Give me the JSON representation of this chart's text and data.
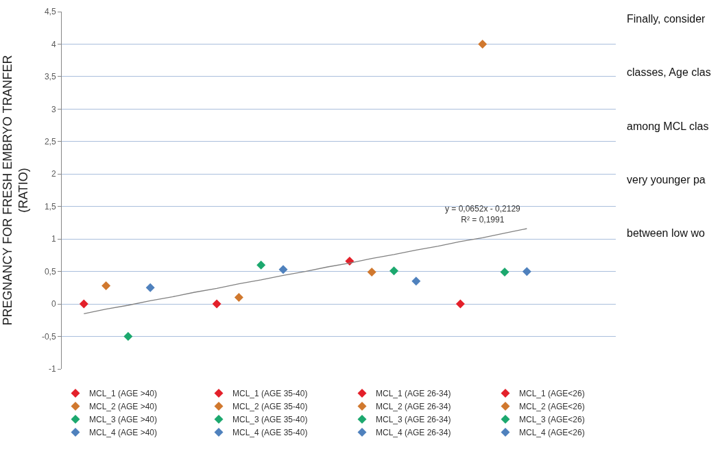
{
  "chart_data": {
    "type": "scatter",
    "ylabel": "PREGNANCY FOR FRESH EMBRYO TRANFER\n(RATIO)",
    "categories": [
      null,
      null,
      null,
      null,
      null,
      null,
      null,
      null,
      null,
      null,
      null,
      null,
      null,
      null,
      null,
      null,
      null,
      null,
      null,
      null,
      null
    ],
    "ylim": [
      -1,
      4.5
    ],
    "yticks": [
      -1,
      {
        "value": -0.5,
        "label": "-0,5"
      },
      0,
      {
        "value": 0.5,
        "label": "0,5"
      },
      1,
      {
        "value": 1.5,
        "label": "1,5"
      },
      2,
      {
        "value": 2.5,
        "label": "2,5"
      },
      3,
      {
        "value": 3.5,
        "label": "3,5"
      },
      4,
      {
        "value": 4.5,
        "label": "4,5"
      }
    ],
    "tick_labels": "y",
    "grid": "y",
    "legend": "bottom",
    "marker": "diamond",
    "series": [
      {
        "name": "MCL_1 (AGE >40)",
        "color": "#e3202a",
        "values": [
          0,
          null,
          null,
          null,
          null,
          null,
          null,
          null,
          null,
          null,
          null,
          null,
          null,
          null,
          null,
          null,
          null,
          null,
          null,
          null,
          null
        ]
      },
      {
        "name": "MCL_2 (AGE >40)",
        "color": "#d0782e",
        "values": [
          null,
          0.28,
          null,
          null,
          null,
          null,
          null,
          null,
          null,
          null,
          null,
          null,
          null,
          null,
          null,
          null,
          null,
          null,
          null,
          null,
          null
        ]
      },
      {
        "name": "MCL_3 (AGE >40)",
        "color": "#1ca86e",
        "values": [
          null,
          null,
          -0.5,
          null,
          null,
          null,
          null,
          null,
          null,
          null,
          null,
          null,
          null,
          null,
          null,
          null,
          null,
          null,
          null,
          null,
          null
        ]
      },
      {
        "name": "MCL_4 (AGE >40)",
        "color": "#4f81bd",
        "values": [
          null,
          null,
          null,
          0.25,
          null,
          null,
          null,
          null,
          null,
          null,
          null,
          null,
          null,
          null,
          null,
          null,
          null,
          null,
          null,
          null,
          null
        ]
      },
      {
        "name": "MCL_1 (AGE 35-40)",
        "color": "#e3202a",
        "values": [
          null,
          null,
          null,
          null,
          null,
          null,
          0,
          null,
          null,
          null,
          null,
          null,
          null,
          null,
          null,
          null,
          null,
          null,
          null,
          null,
          null
        ]
      },
      {
        "name": "MCL_2 (AGE 35-40)",
        "color": "#d0782e",
        "values": [
          null,
          null,
          null,
          null,
          null,
          null,
          null,
          0.1,
          null,
          null,
          null,
          null,
          null,
          null,
          null,
          null,
          null,
          null,
          null,
          null,
          null
        ]
      },
      {
        "name": "MCL_3 (AGE 35-40)",
        "color": "#1ca86e",
        "values": [
          null,
          null,
          null,
          null,
          null,
          null,
          null,
          null,
          0.6,
          null,
          null,
          null,
          null,
          null,
          null,
          null,
          null,
          null,
          null,
          null,
          null
        ]
      },
      {
        "name": "MCL_4 (AGE 35-40)",
        "color": "#4f81bd",
        "values": [
          null,
          null,
          null,
          null,
          null,
          null,
          null,
          null,
          null,
          0.53,
          null,
          null,
          null,
          null,
          null,
          null,
          null,
          null,
          null,
          null,
          null
        ]
      },
      {
        "name": "MCL_1 (AGE 26-34)",
        "color": "#e3202a",
        "values": [
          null,
          null,
          null,
          null,
          null,
          null,
          null,
          null,
          null,
          null,
          null,
          null,
          0.66,
          null,
          null,
          null,
          null,
          null,
          null,
          null,
          null
        ]
      },
      {
        "name": "MCL_2 (AGE 26-34)",
        "color": "#d0782e",
        "values": [
          null,
          null,
          null,
          null,
          null,
          null,
          null,
          null,
          null,
          null,
          null,
          null,
          null,
          0.49,
          null,
          null,
          null,
          null,
          null,
          null,
          null
        ]
      },
      {
        "name": "MCL_3 (AGE 26-34)",
        "color": "#1ca86e",
        "values": [
          null,
          null,
          null,
          null,
          null,
          null,
          null,
          null,
          null,
          null,
          null,
          null,
          null,
          null,
          0.51,
          null,
          null,
          null,
          null,
          null,
          null
        ]
      },
      {
        "name": "MCL_4 (AGE 26-34)",
        "color": "#4f81bd",
        "values": [
          null,
          null,
          null,
          null,
          null,
          null,
          null,
          null,
          null,
          null,
          null,
          null,
          null,
          null,
          null,
          0.35,
          null,
          null,
          null,
          null,
          null
        ]
      },
      {
        "name": "MCL_1 (AGE<26)",
        "color": "#e3202a",
        "values": [
          null,
          null,
          null,
          null,
          null,
          null,
          null,
          null,
          null,
          null,
          null,
          null,
          null,
          null,
          null,
          null,
          null,
          0,
          null,
          null,
          null
        ]
      },
      {
        "name": "MCL_2 (AGE<26)",
        "color": "#d0782e",
        "values": [
          null,
          null,
          null,
          null,
          null,
          null,
          null,
          null,
          null,
          null,
          null,
          null,
          null,
          null,
          null,
          null,
          null,
          null,
          4,
          null,
          null
        ]
      },
      {
        "name": "MCL_3 (AGE<26)",
        "color": "#1ca86e",
        "values": [
          null,
          null,
          null,
          null,
          null,
          null,
          null,
          null,
          null,
          null,
          null,
          null,
          null,
          null,
          null,
          null,
          null,
          null,
          null,
          0.49,
          null
        ]
      },
      {
        "name": "MCL_4 (AGE<26)",
        "color": "#4f81bd",
        "values": [
          null,
          null,
          null,
          null,
          null,
          null,
          null,
          null,
          null,
          null,
          null,
          null,
          null,
          null,
          null,
          null,
          null,
          null,
          null,
          null,
          0.5
        ]
      },
      {
        "type": "line",
        "color": "#808080",
        "marker": "none",
        "values": [
          -0.15,
          -0.08,
          -0.02,
          0.05,
          0.11,
          0.18,
          0.24,
          0.31,
          0.37,
          0.44,
          0.5,
          0.57,
          0.63,
          0.7,
          0.76,
          0.83,
          0.89,
          0.96,
          1.02,
          1.09,
          1.16
        ]
      }
    ],
    "annotations": [
      "y = 0,0652x - 0,2129\nR² = 0,1991",
      "Finally, consider",
      "classes, Age clas",
      "among MCL clas",
      "very younger pa",
      "between low wo"
    ]
  }
}
